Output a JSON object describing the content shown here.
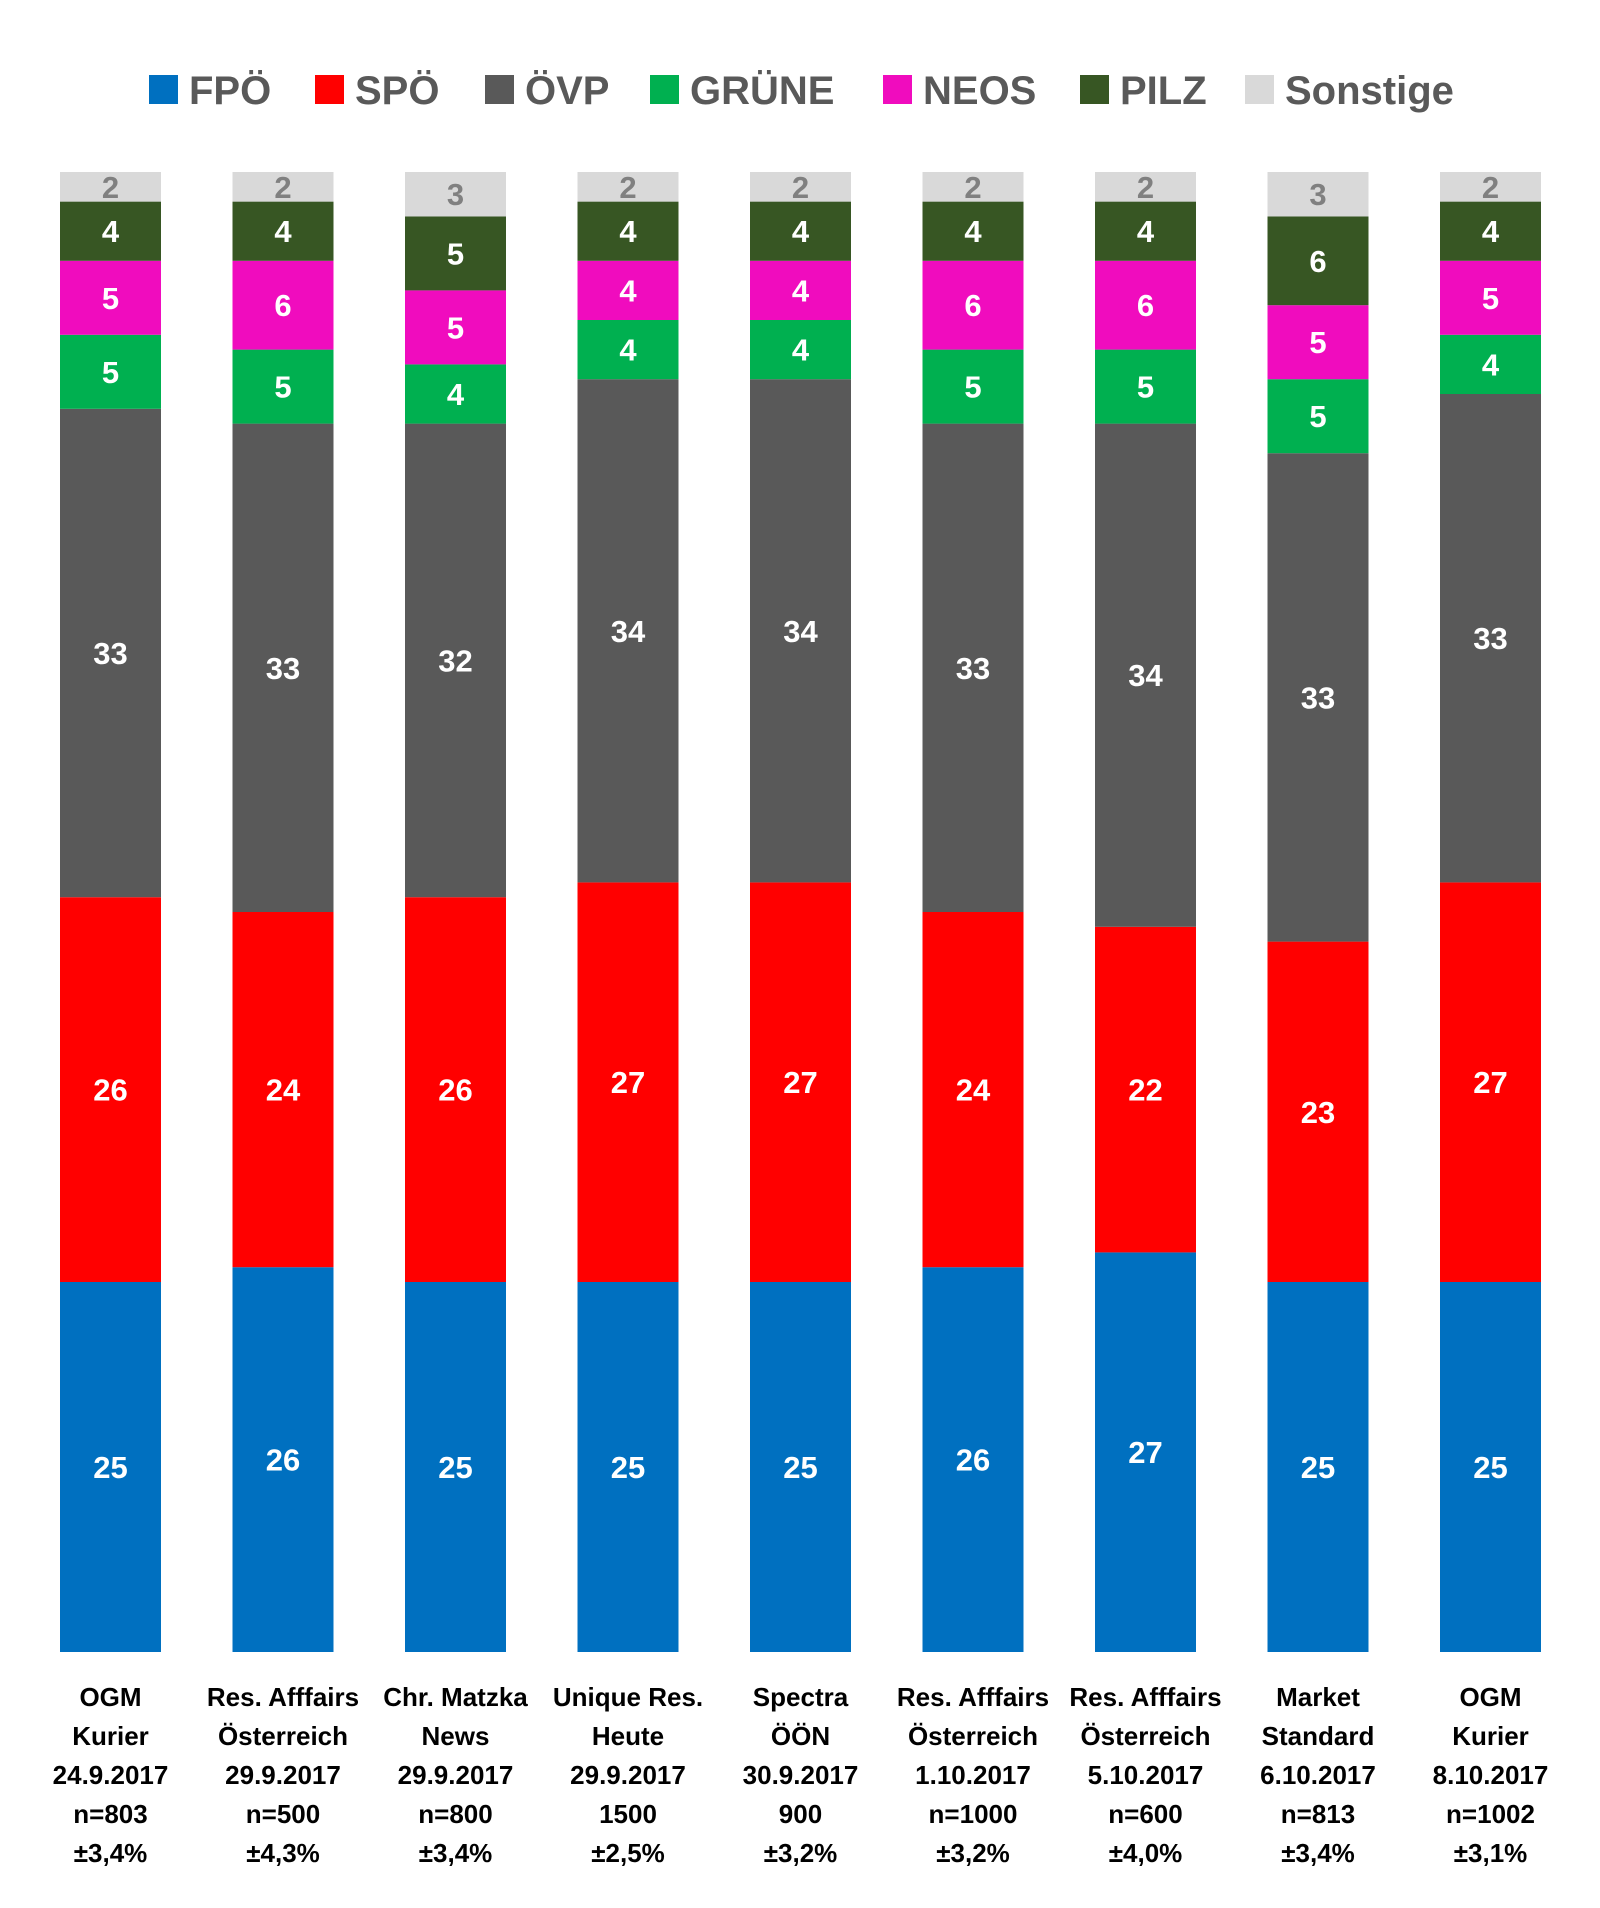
{
  "chart_data": {
    "type": "bar",
    "stacked": true,
    "legend_position": "top",
    "grid": false,
    "ylim": [
      0,
      100
    ],
    "categories": [
      [
        "OGM",
        "Kurier",
        "24.9.2017",
        "n=803",
        "±3,4%"
      ],
      [
        "Res. Afffairs",
        "Österreich",
        "29.9.2017",
        "n=500",
        "±4,3%"
      ],
      [
        "Chr. Matzka",
        "News",
        "29.9.2017",
        "n=800",
        "±3,4%"
      ],
      [
        "Unique Res.",
        "Heute",
        "29.9.2017",
        "1500",
        "±2,5%"
      ],
      [
        "Spectra",
        "ÖÖN",
        "30.9.2017",
        "900",
        "±3,2%"
      ],
      [
        "Res. Afffairs",
        "Österreich",
        "1.10.2017",
        "n=1000",
        "±3,2%"
      ],
      [
        "Res. Afffairs",
        "Österreich",
        "5.10.2017",
        "n=600",
        "±4,0%"
      ],
      [
        "Market",
        "Standard",
        "6.10.2017",
        "n=813",
        "±3,4%"
      ],
      [
        "OGM",
        "Kurier",
        "8.10.2017",
        "n=1002",
        "±3,1%"
      ]
    ],
    "series": [
      {
        "name": "FPÖ",
        "color": "#0070C0",
        "label_color": "#FFFFFF",
        "values": [
          25,
          26,
          25,
          25,
          25,
          26,
          27,
          25,
          25
        ]
      },
      {
        "name": "SPÖ",
        "color": "#FF0000",
        "label_color": "#FFFFFF",
        "values": [
          26,
          24,
          26,
          27,
          27,
          24,
          22,
          23,
          27
        ]
      },
      {
        "name": "ÖVP",
        "color": "#595959",
        "label_color": "#FFFFFF",
        "values": [
          33,
          33,
          32,
          34,
          34,
          33,
          34,
          33,
          33
        ]
      },
      {
        "name": "GRÜNE",
        "color": "#00B050",
        "label_color": "#FFFFFF",
        "values": [
          5,
          5,
          4,
          4,
          4,
          5,
          5,
          5,
          4
        ]
      },
      {
        "name": "NEOS",
        "color": "#F00CBE",
        "label_color": "#FFFFFF",
        "values": [
          5,
          6,
          5,
          4,
          4,
          6,
          6,
          5,
          5
        ]
      },
      {
        "name": "PILZ",
        "color": "#375623",
        "label_color": "#FFFFFF",
        "values": [
          4,
          4,
          5,
          4,
          4,
          4,
          4,
          6,
          4
        ]
      },
      {
        "name": "Sonstige",
        "color": "#D9D9D9",
        "label_color": "#808080",
        "values": [
          2,
          2,
          3,
          2,
          2,
          2,
          2,
          3,
          2
        ]
      }
    ]
  }
}
